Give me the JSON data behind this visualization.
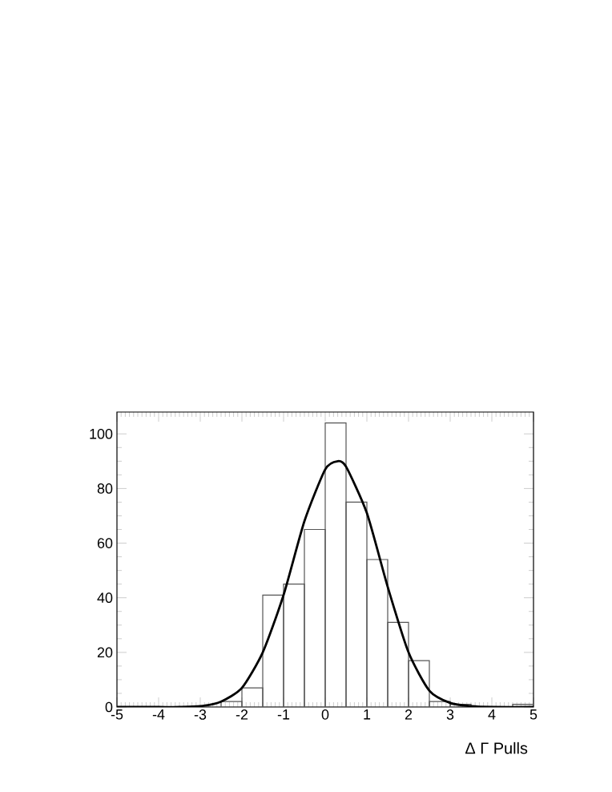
{
  "chart_data": {
    "type": "histogram",
    "xlabel": "Δ Γ Pulls",
    "bins": [
      -5,
      -4.5,
      -4,
      -3.5,
      -3,
      -2.5,
      -2,
      -1.5,
      -1,
      -0.5,
      0,
      0.5,
      1,
      1.5,
      2,
      2.5,
      3,
      3.5,
      4,
      4.5,
      5
    ],
    "values": [
      0,
      0,
      0,
      0,
      0,
      2,
      7,
      41,
      45,
      65,
      104,
      75,
      54,
      31,
      17,
      2,
      1,
      0,
      0,
      1
    ],
    "color": "#555555",
    "series": [
      {
        "type": "line",
        "color": "#000000",
        "x": [
          -5,
          -4,
          -3.5,
          -3,
          -2.5,
          -2,
          -1.5,
          -1,
          -0.5,
          0,
          0.3,
          0.5,
          1,
          1.5,
          2,
          2.5,
          3,
          3.5,
          4,
          5
        ],
        "values": [
          0,
          0,
          0,
          0.3,
          2,
          7,
          20,
          41,
          68,
          87,
          90,
          88,
          71,
          44,
          20,
          6,
          1.5,
          0.3,
          0,
          0
        ]
      }
    ],
    "xlim": [
      -5,
      5
    ],
    "ylim": [
      0,
      108
    ],
    "xticks": [
      -5,
      -4,
      -3,
      -2,
      -1,
      0,
      1,
      2,
      3,
      4,
      5
    ],
    "yticks": [
      0,
      20,
      40,
      60,
      80,
      100
    ]
  }
}
